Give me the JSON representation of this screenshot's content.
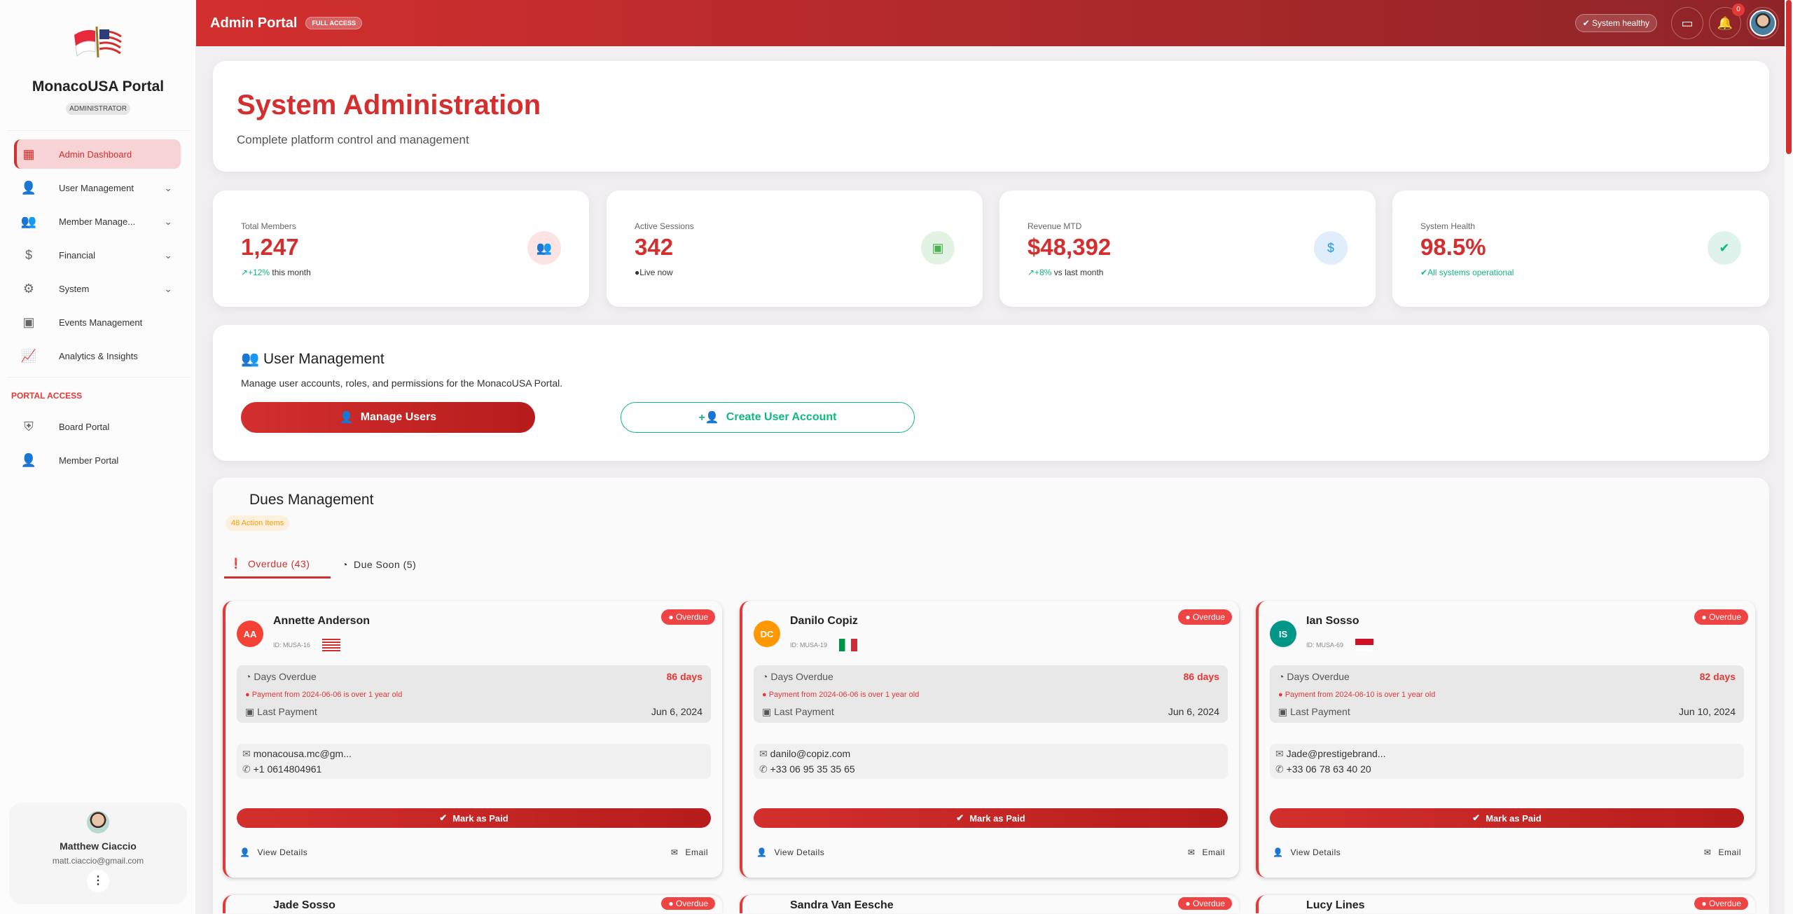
{
  "sidebar": {
    "brand": "MonacoUSA Portal",
    "role": "ADMINISTRATOR",
    "items": [
      {
        "label": "Admin Dashboard",
        "icon": "dashboard-icon",
        "active": true
      },
      {
        "label": "User Management",
        "icon": "user-gear-icon"
      },
      {
        "label": "Member Manage...",
        "icon": "group-icon"
      },
      {
        "label": "Financial",
        "icon": "dollar-icon"
      },
      {
        "label": "System",
        "icon": "gear-icon"
      },
      {
        "label": "Events Management",
        "icon": "calendar-icon"
      },
      {
        "label": "Analytics & Insights",
        "icon": "chart-icon"
      }
    ],
    "portal_label": "PORTAL ACCESS",
    "portal_items": [
      {
        "label": "Board Portal",
        "icon": "shield-account-icon"
      },
      {
        "label": "Member Portal",
        "icon": "person-icon"
      }
    ],
    "user": {
      "name": "Matthew Ciaccio",
      "email": "matt.ciaccio@gmail.com"
    }
  },
  "header": {
    "title": "Admin Portal",
    "badge": "FULL ACCESS",
    "health": "System healthy",
    "notifications": "0"
  },
  "hero": {
    "title": "System Administration",
    "subtitle": "Complete platform control and management"
  },
  "stats": [
    {
      "label": "Total Members",
      "value": "1,247",
      "trend": "+12%",
      "sub": " this month",
      "color": "#fde4e4",
      "icolor": "#e53935"
    },
    {
      "label": "Active Sessions",
      "value": "342",
      "trend": "",
      "sub": "Live now",
      "color": "#e3f3e3",
      "icolor": "#4caf50"
    },
    {
      "label": "Revenue MTD",
      "value": "$48,392",
      "trend": "+8%",
      "sub": " vs last month",
      "color": "#e0edfb",
      "icolor": "#2196f3"
    },
    {
      "label": "System Health",
      "value": "98.5%",
      "trend": "",
      "sub": "All systems operational",
      "color": "#dff3ec",
      "icolor": "#10b981"
    }
  ],
  "user_mgmt": {
    "title": "User Management",
    "desc": "Manage user accounts, roles, and permissions for the MonacoUSA Portal.",
    "manage": "Manage Users",
    "create": "Create User Account"
  },
  "dues": {
    "title": "Dues Management",
    "action_items": "48 Action Items",
    "tabs": [
      "Overdue (43)",
      "Due Soon (5)"
    ],
    "labels": {
      "days_overdue": "Days Overdue",
      "last_payment": "Last Payment",
      "mark_paid": "Mark as Paid",
      "view": "View Details",
      "email": "Email",
      "badge": "Overdue"
    },
    "members": [
      {
        "initials": "AA",
        "name": "Annette Anderson",
        "id": "ID: MUSA-16",
        "days": "86 days",
        "warning": "Payment from 2024-06-06 is over 1 year old",
        "last": "Jun 6, 2024",
        "email": "monacousa.mc@gm...",
        "phone": "+1 0614804961",
        "avatar_color": "#f44336",
        "flag": "us"
      },
      {
        "initials": "DC",
        "name": "Danilo Copiz",
        "id": "ID: MUSA-19",
        "days": "86 days",
        "warning": "Payment from 2024-06-06 is over 1 year old",
        "last": "Jun 6, 2024",
        "email": "danilo@copiz.com",
        "phone": "+33 06 95 35 35 65",
        "avatar_color": "#ff9800",
        "flag": "it"
      },
      {
        "initials": "IS",
        "name": "Ian Sosso",
        "id": "ID: MUSA-69",
        "days": "82 days",
        "warning": "Payment from 2024-06-10 is over 1 year old",
        "last": "Jun 10, 2024",
        "email": "Jade@prestigebrand...",
        "phone": "+33 06 78 63 40 20",
        "avatar_color": "#009688",
        "flag": "mc"
      }
    ],
    "next_row": [
      "Jade Sosso",
      "Sandra Van Eesche",
      "Lucy Lines"
    ]
  }
}
